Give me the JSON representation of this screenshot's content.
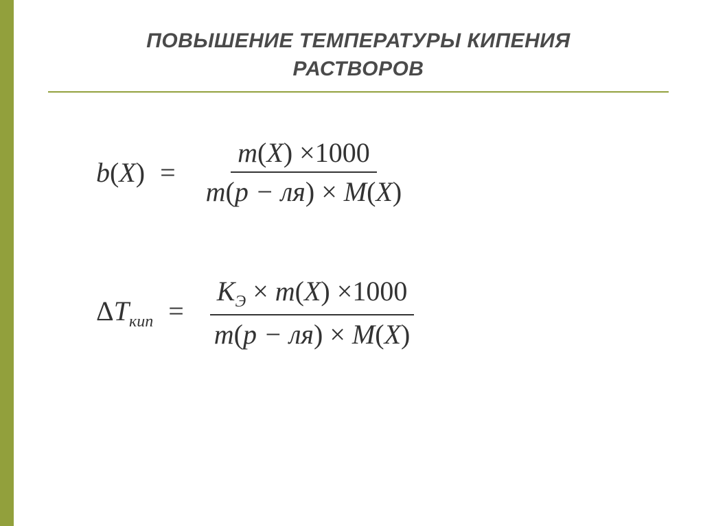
{
  "accent_color": "#92a03c",
  "title_color": "#4a4a4a",
  "text_color": "#333333",
  "title_line1": "ПОВЫШЕНИЕ ТЕМПЕРАТУРЫ КИПЕНИЯ",
  "title_line2": "РАСТВОРОВ",
  "equation1": {
    "lhs_func": "b",
    "lhs_arg": "X",
    "num_m": "m",
    "num_arg": "X",
    "num_const": "1000",
    "den_m": "m",
    "den_p_text": "p − ля",
    "den_M": "M",
    "den_M_arg": "X",
    "operator_times": "×",
    "equals": "="
  },
  "equation2": {
    "lhs_delta": "Δ",
    "lhs_T": "T",
    "lhs_sub": "кип",
    "num_K": "K",
    "num_K_sub": "Э",
    "num_m": "m",
    "num_arg": "X",
    "num_const": "1000",
    "den_m": "m",
    "den_p_text": "p − ля",
    "den_M": "M",
    "den_M_arg": "X",
    "operator_times": "×",
    "equals": "="
  },
  "font_sizes": {
    "title": 30,
    "equation": 40
  }
}
